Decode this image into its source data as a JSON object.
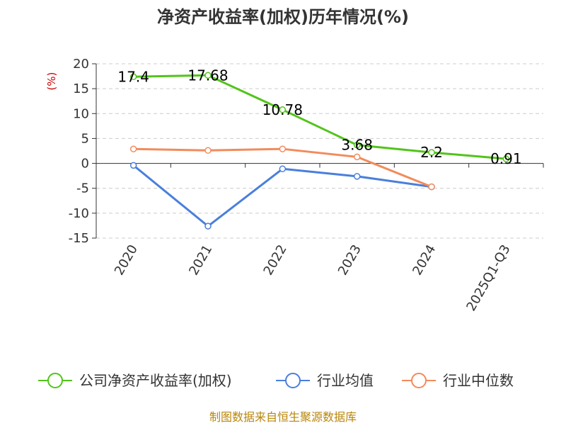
{
  "title": "净资产收益率(加权)历年情况(%)",
  "footer": "制图数据来自恒生聚源数据库",
  "chart_data": {
    "type": "line",
    "title": "净资产收益率(加权)历年情况(%)",
    "ylabel": "(%)",
    "xlabel": "",
    "categories": [
      "2020",
      "2021",
      "2022",
      "2023",
      "2024",
      "2025Q1-Q3"
    ],
    "ylim": [
      -15,
      20
    ],
    "yticks": [
      20,
      15,
      10,
      5,
      0,
      -5,
      -10,
      -15
    ],
    "grid": true,
    "legend_position": "bottom",
    "series": [
      {
        "name": "公司净资产收益率(加权)",
        "color": "#52c41a",
        "values": [
          17.4,
          17.68,
          10.78,
          3.68,
          2.2,
          0.91
        ],
        "labels": [
          "17.4",
          "17.68",
          "10.78",
          "3.68",
          "2.2",
          "0.91"
        ]
      },
      {
        "name": "行业均值",
        "color": "#4a7fdc",
        "values": [
          -0.4,
          -12.6,
          -1.1,
          -2.6,
          -4.7,
          null
        ]
      },
      {
        "name": "行业中位数",
        "color": "#f28b5b",
        "values": [
          2.9,
          2.6,
          2.9,
          1.3,
          -4.7,
          null
        ]
      }
    ]
  }
}
